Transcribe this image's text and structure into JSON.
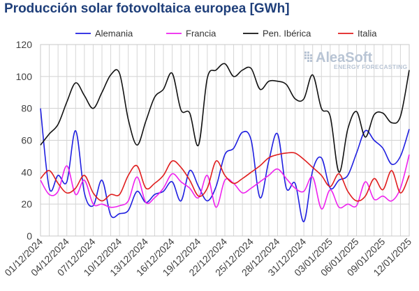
{
  "chart_data": {
    "type": "line",
    "title": "Producción solar fotovoltaica europea [GWh]",
    "xlabel": "",
    "ylabel": "",
    "ylim": [
      0,
      120
    ],
    "yticks": [
      0,
      20,
      40,
      60,
      80,
      100,
      120
    ],
    "x": [
      "01/12/2024",
      "02/12/2024",
      "03/12/2024",
      "04/12/2024",
      "05/12/2024",
      "06/12/2024",
      "07/12/2024",
      "08/12/2024",
      "09/12/2024",
      "10/12/2024",
      "11/12/2024",
      "12/12/2024",
      "13/12/2024",
      "14/12/2024",
      "15/12/2024",
      "16/12/2024",
      "17/12/2024",
      "18/12/2024",
      "19/12/2024",
      "20/12/2024",
      "21/12/2024",
      "22/12/2024",
      "23/12/2024",
      "24/12/2024",
      "25/12/2024",
      "26/12/2024",
      "27/12/2024",
      "28/12/2024",
      "29/12/2024",
      "30/12/2024",
      "31/12/2024",
      "01/01/2025",
      "02/01/2025",
      "03/01/2025",
      "04/01/2025",
      "05/01/2025",
      "06/01/2025",
      "07/01/2025",
      "08/01/2025",
      "09/01/2025",
      "10/01/2025",
      "11/01/2025",
      "12/01/2025"
    ],
    "x_tick_labels": [
      "01/12/2024",
      "04/12/2024",
      "07/12/2024",
      "10/12/2024",
      "13/12/2024",
      "16/12/2024",
      "19/12/2024",
      "22/12/2024",
      "25/12/2024",
      "28/12/2024",
      "31/12/2024",
      "03/01/2025",
      "06/01/2025",
      "09/01/2025",
      "12/01/2025"
    ],
    "grid": true,
    "legend_position": "top",
    "series": [
      {
        "name": "Alemania",
        "color": "#1f1fe0",
        "values": [
          80,
          30,
          38,
          34,
          66,
          27,
          19,
          35,
          13,
          14,
          16,
          28,
          21,
          26,
          28,
          34,
          22,
          41,
          31,
          22,
          31,
          51,
          55,
          65,
          60,
          24,
          47,
          64,
          30,
          33,
          9,
          41,
          49,
          30,
          35,
          38,
          52,
          66,
          60,
          55,
          45,
          50,
          67
        ]
      },
      {
        "name": "Francia",
        "color": "#ee22ee",
        "values": [
          35,
          26,
          28,
          44,
          26,
          35,
          20,
          20,
          18,
          19,
          22,
          37,
          21,
          24,
          30,
          39,
          34,
          30,
          24,
          38,
          18,
          35,
          33,
          27,
          30,
          34,
          38,
          42,
          36,
          30,
          28,
          37,
          17,
          29,
          18,
          20,
          19,
          34,
          23,
          25,
          22,
          30,
          51
        ]
      },
      {
        "name": "Pen. Ibérica",
        "color": "#111111",
        "values": [
          57,
          64,
          70,
          84,
          96,
          88,
          80,
          90,
          101,
          102,
          73,
          57,
          72,
          87,
          92,
          102,
          79,
          77,
          57,
          99,
          104,
          108,
          100,
          104,
          105,
          92,
          97,
          97,
          95,
          86,
          86,
          101,
          80,
          75,
          40,
          67,
          78,
          62,
          76,
          77,
          71,
          75,
          104
        ]
      },
      {
        "name": "Italia",
        "color": "#e01e1e",
        "values": [
          36,
          41,
          33,
          27,
          30,
          38,
          27,
          22,
          26,
          26,
          38,
          44,
          30,
          33,
          38,
          47,
          43,
          35,
          25,
          30,
          47,
          38,
          33,
          36,
          40,
          44,
          49,
          51,
          52,
          52,
          48,
          43,
          38,
          31,
          39,
          28,
          22,
          25,
          36,
          29,
          41,
          27,
          38
        ]
      }
    ]
  },
  "branding": {
    "name": "AleaSoft",
    "tagline": "ENERGY FORECASTING"
  }
}
